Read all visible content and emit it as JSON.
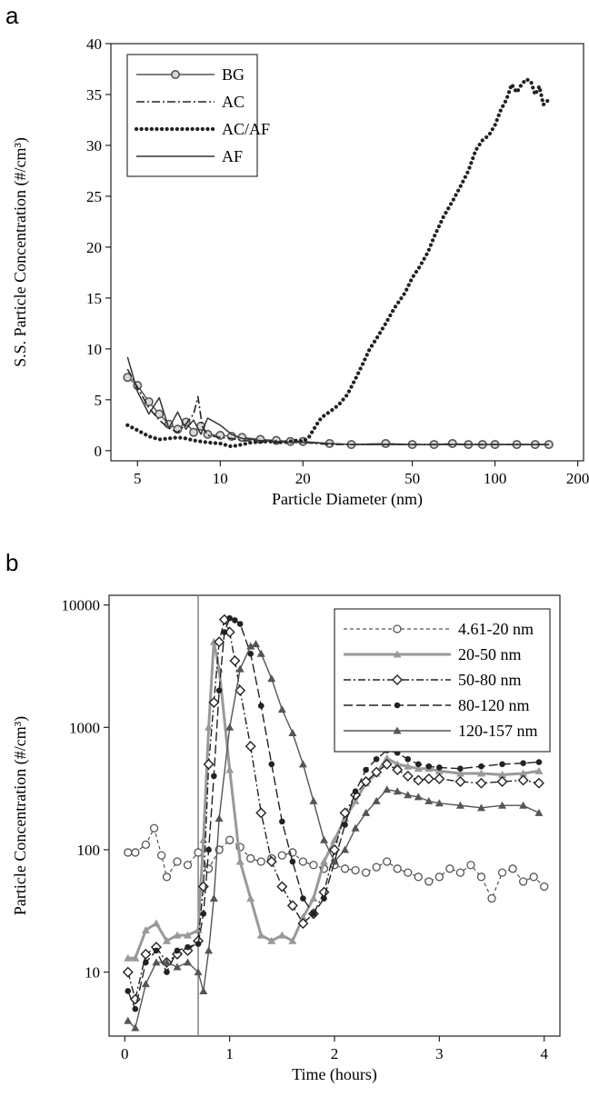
{
  "chart_data": [
    {
      "panel": "a",
      "type": "line",
      "xlabel": "Particle Diameter (nm)",
      "ylabel": "S.S. Particle Concentration (#/cm³)",
      "x_scale": "log",
      "xlim": [
        4,
        210
      ],
      "ylim": [
        -1,
        40
      ],
      "x_ticks": [
        5,
        10,
        20,
        50,
        100,
        200
      ],
      "y_ticks": [
        0,
        5,
        10,
        15,
        20,
        25,
        30,
        35,
        40
      ],
      "legend": "top-left",
      "series": [
        {
          "name": "BG",
          "x": [
            4.6,
            5.0,
            5.5,
            6.0,
            6.5,
            7.0,
            7.5,
            8.0,
            8.5,
            9.0,
            10,
            11,
            12,
            14,
            16,
            18,
            20,
            25,
            30,
            40,
            50,
            60,
            70,
            80,
            90,
            100,
            120,
            140,
            157
          ],
          "y": [
            7.2,
            6.4,
            4.8,
            3.6,
            2.6,
            2.1,
            2.8,
            1.8,
            2.4,
            1.6,
            1.5,
            1.4,
            1.3,
            1.1,
            1.0,
            0.9,
            0.9,
            0.7,
            0.6,
            0.7,
            0.6,
            0.6,
            0.7,
            0.6,
            0.6,
            0.6,
            0.6,
            0.6,
            0.6
          ],
          "color": "#555555"
        },
        {
          "name": "AC",
          "x": [
            4.6,
            5.0,
            5.5,
            6.0,
            6.5,
            7.0,
            7.5,
            8.0,
            8.3,
            8.6,
            9.0,
            10,
            11,
            12,
            14,
            16,
            18,
            20,
            25,
            30,
            40,
            50,
            60,
            70,
            80,
            90,
            100,
            120,
            140,
            157
          ],
          "y": [
            8.0,
            6.2,
            4.2,
            3.0,
            2.2,
            1.8,
            2.6,
            3.6,
            5.3,
            2.4,
            1.5,
            1.3,
            1.2,
            1.0,
            0.9,
            0.8,
            0.8,
            0.8,
            0.6,
            0.6,
            0.6,
            0.6,
            0.6,
            0.6,
            0.6,
            0.6,
            0.6,
            0.6,
            0.6,
            0.6
          ],
          "color": "#222222"
        },
        {
          "name": "AC/AF",
          "x": [
            4.6,
            5.0,
            5.5,
            6.0,
            6.5,
            7.0,
            7.5,
            8.0,
            9.0,
            10,
            11,
            12,
            13,
            15,
            17,
            19,
            20,
            21,
            22,
            23,
            24,
            25,
            27,
            29,
            31,
            33,
            35,
            37,
            40,
            43,
            47,
            50,
            53,
            57,
            60,
            65,
            70,
            75,
            80,
            85,
            90,
            95,
            100,
            105,
            110,
            115,
            120,
            125,
            130,
            135,
            140,
            145,
            150,
            157
          ],
          "y": [
            2.5,
            2.0,
            1.4,
            1.1,
            1.2,
            1.3,
            1.2,
            1.0,
            0.8,
            0.7,
            0.4,
            0.6,
            0.8,
            0.9,
            0.8,
            1.0,
            0.9,
            1.3,
            2.2,
            3.0,
            3.5,
            3.8,
            4.5,
            5.5,
            7.0,
            8.5,
            10.0,
            11.0,
            12.5,
            14.0,
            15.5,
            17.0,
            18.0,
            19.5,
            21.0,
            23.0,
            24.5,
            26.0,
            27.5,
            29.5,
            30.5,
            31.0,
            32.0,
            33.5,
            34.5,
            36.0,
            35.2,
            36.0,
            36.5,
            36.3,
            35.0,
            35.8,
            34.0,
            34.5
          ],
          "color": "#222222"
        },
        {
          "name": "AF",
          "x": [
            4.6,
            5.0,
            5.5,
            6.0,
            6.5,
            7.0,
            7.5,
            8.0,
            8.5,
            9.0,
            10,
            11,
            12,
            14,
            16,
            18,
            20,
            25,
            30,
            40,
            50,
            60,
            70,
            80,
            90,
            100,
            120,
            140,
            157
          ],
          "y": [
            9.2,
            5.8,
            3.6,
            5.2,
            2.2,
            3.8,
            2.1,
            3.0,
            1.6,
            3.2,
            2.5,
            1.6,
            1.2,
            1.0,
            0.9,
            0.8,
            0.8,
            0.7,
            0.6,
            0.6,
            0.6,
            0.6,
            0.6,
            0.6,
            0.6,
            0.6,
            0.6,
            0.6,
            0.6
          ],
          "color": "#333333"
        }
      ]
    },
    {
      "panel": "b",
      "type": "line",
      "xlabel": "Time (hours)",
      "ylabel": "Particle Concentration (#/cm³)",
      "y_scale": "log",
      "xlim": [
        -0.15,
        4.15
      ],
      "ylim": [
        3,
        12000
      ],
      "x_ticks": [
        0,
        1,
        2,
        3,
        4
      ],
      "y_ticks": [
        10,
        100,
        1000,
        10000
      ],
      "vertical_line_x": 0.7,
      "legend": "top-right",
      "series": [
        {
          "name": "4.61-20 nm",
          "x": [
            0.03,
            0.1,
            0.2,
            0.28,
            0.35,
            0.4,
            0.5,
            0.6,
            0.7,
            0.8,
            0.9,
            1.0,
            1.1,
            1.2,
            1.3,
            1.4,
            1.5,
            1.6,
            1.7,
            1.8,
            1.9,
            2.0,
            2.1,
            2.2,
            2.3,
            2.4,
            2.5,
            2.6,
            2.7,
            2.8,
            2.9,
            3.0,
            3.1,
            3.2,
            3.3,
            3.4,
            3.5,
            3.6,
            3.7,
            3.8,
            3.9,
            4.0
          ],
          "y": [
            95,
            95,
            110,
            150,
            90,
            60,
            80,
            75,
            95,
            70,
            100,
            120,
            105,
            85,
            80,
            85,
            90,
            95,
            80,
            75,
            70,
            75,
            70,
            68,
            65,
            72,
            80,
            70,
            65,
            60,
            55,
            60,
            70,
            65,
            75,
            60,
            40,
            65,
            70,
            55,
            60,
            50
          ],
          "color": "#555555"
        },
        {
          "name": "20-50 nm",
          "x": [
            0.03,
            0.1,
            0.2,
            0.3,
            0.4,
            0.5,
            0.6,
            0.7,
            0.75,
            0.8,
            0.85,
            0.9,
            1.0,
            1.1,
            1.2,
            1.3,
            1.4,
            1.5,
            1.6,
            1.7,
            1.8,
            1.9,
            2.0,
            2.1,
            2.2,
            2.3,
            2.4,
            2.5,
            2.6,
            2.7,
            2.8,
            2.9,
            3.0,
            3.2,
            3.4,
            3.6,
            3.8,
            3.95
          ],
          "y": [
            13,
            13,
            22,
            25,
            18,
            20,
            20,
            22,
            120,
            1000,
            5000,
            3000,
            450,
            80,
            40,
            20,
            18,
            20,
            18,
            28,
            40,
            80,
            120,
            180,
            250,
            350,
            420,
            560,
            500,
            480,
            460,
            460,
            440,
            420,
            420,
            410,
            420,
            440
          ],
          "color": "#999999"
        },
        {
          "name": "50-80 nm",
          "x": [
            0.03,
            0.1,
            0.2,
            0.3,
            0.4,
            0.5,
            0.6,
            0.7,
            0.75,
            0.8,
            0.85,
            0.9,
            0.95,
            1.0,
            1.05,
            1.1,
            1.2,
            1.3,
            1.4,
            1.5,
            1.6,
            1.7,
            1.8,
            1.9,
            2.0,
            2.1,
            2.2,
            2.3,
            2.4,
            2.5,
            2.6,
            2.7,
            2.8,
            2.9,
            3.0,
            3.2,
            3.4,
            3.6,
            3.8,
            3.95
          ],
          "y": [
            10,
            6,
            14,
            16,
            12,
            14,
            15,
            18,
            50,
            500,
            1600,
            5000,
            7600,
            6000,
            3500,
            2000,
            700,
            200,
            80,
            50,
            35,
            25,
            30,
            45,
            100,
            200,
            280,
            360,
            430,
            500,
            450,
            400,
            370,
            380,
            380,
            360,
            350,
            360,
            370,
            350
          ],
          "color": "#222222"
        },
        {
          "name": "80-120 nm",
          "x": [
            0.03,
            0.1,
            0.2,
            0.3,
            0.4,
            0.5,
            0.6,
            0.7,
            0.75,
            0.8,
            0.85,
            0.9,
            0.95,
            1.0,
            1.05,
            1.1,
            1.2,
            1.3,
            1.4,
            1.5,
            1.6,
            1.7,
            1.8,
            1.9,
            2.0,
            2.1,
            2.2,
            2.3,
            2.4,
            2.5,
            2.6,
            2.7,
            2.8,
            2.9,
            3.0,
            3.2,
            3.4,
            3.6,
            3.8,
            3.95
          ],
          "y": [
            7,
            5,
            12,
            15,
            10,
            15,
            16,
            17,
            30,
            100,
            400,
            2000,
            6000,
            7800,
            7500,
            7000,
            4000,
            1500,
            500,
            170,
            80,
            40,
            30,
            40,
            80,
            160,
            300,
            450,
            550,
            650,
            620,
            550,
            500,
            480,
            470,
            460,
            480,
            500,
            510,
            520
          ],
          "color": "#222222"
        },
        {
          "name": "120-157 nm",
          "x": [
            0.03,
            0.1,
            0.2,
            0.3,
            0.4,
            0.5,
            0.6,
            0.7,
            0.75,
            0.8,
            0.85,
            0.9,
            1.0,
            1.1,
            1.2,
            1.25,
            1.3,
            1.4,
            1.5,
            1.6,
            1.7,
            1.8,
            1.9,
            2.0,
            2.1,
            2.2,
            2.3,
            2.4,
            2.5,
            2.6,
            2.7,
            2.8,
            2.9,
            3.0,
            3.2,
            3.4,
            3.6,
            3.8,
            3.95
          ],
          "y": [
            4,
            3.5,
            8,
            12,
            12,
            11,
            12,
            10,
            7,
            15,
            40,
            180,
            1000,
            3000,
            4600,
            4800,
            4000,
            2500,
            1400,
            900,
            500,
            250,
            120,
            80,
            100,
            150,
            200,
            250,
            310,
            300,
            280,
            270,
            250,
            240,
            230,
            220,
            230,
            230,
            200
          ],
          "color": "#555555"
        }
      ]
    }
  ],
  "labels": {
    "panel_a": "a",
    "panel_b": "b"
  }
}
